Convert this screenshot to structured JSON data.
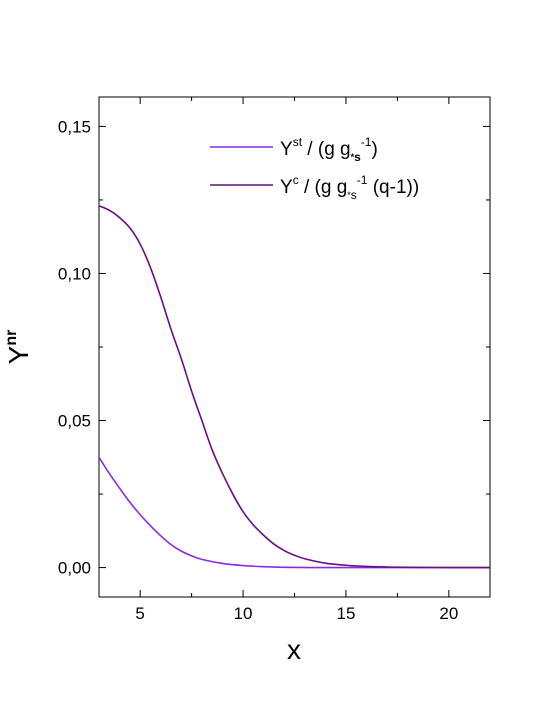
{
  "chart_data": {
    "type": "line",
    "xlabel": "x",
    "ylabel": {
      "base": "Y",
      "sup": "nr"
    },
    "xlim": [
      3,
      22
    ],
    "ylim": [
      -0.01,
      0.16
    ],
    "xticks": [
      5,
      10,
      15,
      20
    ],
    "xtick_labels": [
      "5",
      "10",
      "15",
      "20"
    ],
    "yticks": [
      0.0,
      0.05,
      0.1,
      0.15
    ],
    "ytick_labels": [
      "0,00",
      "0,05",
      "0,10",
      "0,15"
    ],
    "legend_position": "top-right",
    "legend": [
      {
        "base": "Y",
        "sup": "st",
        "mid": " / (g g",
        "sub_star": "*",
        "sub_s": "s",
        "sup2": "-1",
        "tail": ")"
      },
      {
        "base": "Y",
        "sup": "c",
        "mid": " / (g g",
        "sub_star": "*",
        "sub_s": "s",
        "sup2": "-1",
        "tail": " (q-1))"
      }
    ],
    "series": [
      {
        "color": "#8a2be2",
        "x": [
          3,
          3.5,
          4,
          4.5,
          5,
          5.5,
          6,
          6.5,
          7,
          7.5,
          8,
          9,
          10,
          11,
          12,
          14,
          16,
          18,
          20,
          22
        ],
        "y": [
          0.0375,
          0.032,
          0.027,
          0.0222,
          0.018,
          0.0142,
          0.0108,
          0.0078,
          0.0056,
          0.004,
          0.0028,
          0.0014,
          0.0007,
          0.0003,
          0.0001,
          0.0,
          0.0,
          0.0,
          0.0,
          0.0
        ]
      },
      {
        "color": "#6a0d83",
        "x": [
          3,
          3.5,
          4,
          4.5,
          5,
          5.5,
          6,
          6.5,
          7,
          7.5,
          8,
          8.5,
          9,
          9.5,
          10,
          10.5,
          11,
          11.5,
          12,
          12.5,
          13,
          14,
          15,
          16,
          17,
          18,
          20,
          22
        ],
        "y": [
          0.123,
          0.1215,
          0.119,
          0.1155,
          0.11,
          0.102,
          0.092,
          0.081,
          0.071,
          0.06,
          0.05,
          0.04,
          0.032,
          0.025,
          0.019,
          0.0145,
          0.011,
          0.008,
          0.0058,
          0.0042,
          0.003,
          0.0015,
          0.0008,
          0.0004,
          0.0002,
          0.0001,
          0.0,
          0.0
        ]
      }
    ]
  }
}
